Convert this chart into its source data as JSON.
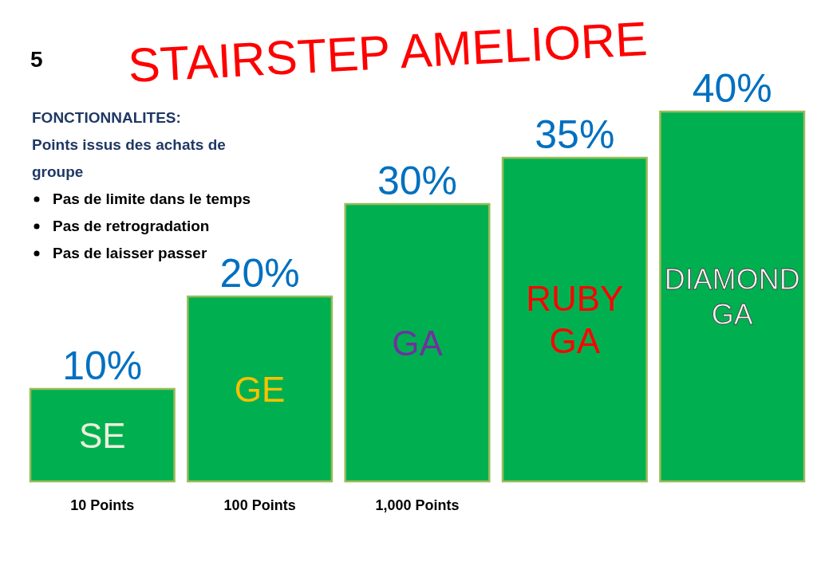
{
  "chart_data": {
    "type": "bar",
    "title": "STAIRSTEP AMELIORE",
    "subtitle": "FONCTIONNALITES:",
    "categories": [
      "SE",
      "GE",
      "GA",
      "RUBY GA",
      "DIAMOND GA"
    ],
    "values": [
      10,
      20,
      30,
      35,
      40
    ],
    "value_labels": [
      "10%",
      "20%",
      "30%",
      "35%",
      "40%"
    ],
    "color": "#00b050",
    "annotations": [
      "5",
      "Points issus des achats de groupe",
      "Pas de limite dans le temps",
      "Pas de retrogradation",
      "Pas de laisser passer",
      {
        "text": "10 Points",
        "x": "SE",
        "y": 0
      },
      {
        "text": "100 Points",
        "x": "GE",
        "y": 0
      },
      {
        "text": "1,000 Points",
        "x": "GA",
        "y": 0
      }
    ]
  }
}
